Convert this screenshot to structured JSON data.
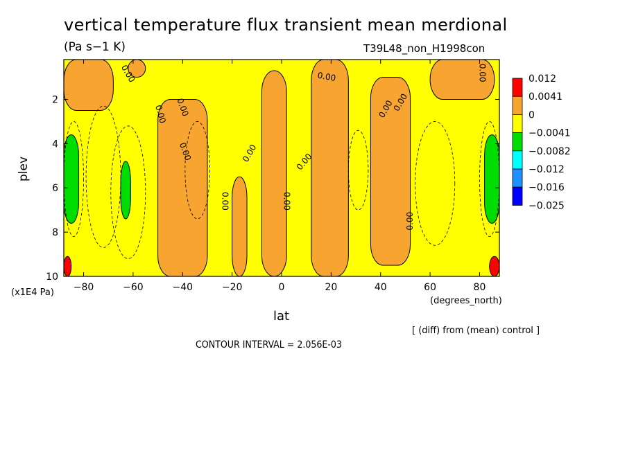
{
  "title": "vertical temperature flux transient mean merdional",
  "units": "(Pa s−1 K)",
  "run_label": "T39L48_non_H1998con",
  "note": "[ (diff) from (mean) control ]",
  "contour_interval": "CONTOUR INTERVAL = 2.056E-03",
  "chart_data": {
    "type": "heatmap",
    "xlabel": "lat",
    "xunit": "(degrees_north)",
    "ylabel": "plev",
    "yunit": "(x1E4 Pa)",
    "xlim": [
      -88,
      88
    ],
    "ylim": [
      0.2,
      10
    ],
    "x_ticks": [
      -80,
      -60,
      -40,
      -20,
      0,
      20,
      40,
      60,
      80
    ],
    "x_tick_labels": [
      "−80",
      "−60",
      "−40",
      "−20",
      "0",
      "20",
      "40",
      "60",
      "80"
    ],
    "y_ticks": [
      2,
      4,
      6,
      8,
      10
    ],
    "y_tick_labels": [
      "2",
      "4",
      "6",
      "8",
      "10"
    ],
    "legend": {
      "placement": "right",
      "labels": [
        "0.012",
        "0.0041",
        "0",
        "−0.0041",
        "−0.0082",
        "−0.012",
        "−0.016",
        "−0.025"
      ],
      "colors": [
        "#ff0000",
        "#f7a530",
        "#ffff00",
        "#00dd00",
        "#00ffff",
        "#1e90ff",
        "#0000ff"
      ]
    },
    "contour_labels": [
      "0.00",
      "0.00",
      "0.00",
      "0.00",
      "0.00",
      "0.00",
      "0.00",
      "0.00",
      "0.00",
      "0.00",
      "0.00",
      "0.00",
      "0.00"
    ],
    "regions": [
      {
        "level": "positive",
        "color": "#f7a530",
        "lat_range": [
          -88,
          -68
        ],
        "plev_range": [
          0.2,
          2.5
        ]
      },
      {
        "level": "positive",
        "color": "#f7a530",
        "lat_range": [
          -62,
          -55
        ],
        "plev_range": [
          0.2,
          1.0
        ]
      },
      {
        "level": "positive",
        "color": "#f7a530",
        "lat_range": [
          -50,
          -30
        ],
        "plev_range": [
          2.0,
          10
        ]
      },
      {
        "level": "positive",
        "color": "#f7a530",
        "lat_range": [
          -20,
          -14
        ],
        "plev_range": [
          5.5,
          10
        ]
      },
      {
        "level": "positive",
        "color": "#f7a530",
        "lat_range": [
          -8,
          2
        ],
        "plev_range": [
          0.7,
          10
        ]
      },
      {
        "level": "positive",
        "color": "#f7a530",
        "lat_range": [
          12,
          27
        ],
        "plev_range": [
          0.2,
          10
        ]
      },
      {
        "level": "positive",
        "color": "#f7a530",
        "lat_range": [
          36,
          52
        ],
        "plev_range": [
          1.0,
          9.5
        ]
      },
      {
        "level": "positive",
        "color": "#f7a530",
        "lat_range": [
          60,
          86
        ],
        "plev_range": [
          0.2,
          2.0
        ]
      },
      {
        "level": "negative",
        "color": "#00dd00",
        "lat_range": [
          -88,
          -82
        ],
        "plev_range": [
          3.6,
          7.6
        ]
      },
      {
        "level": "negative",
        "color": "#00dd00",
        "lat_range": [
          -65,
          -61
        ],
        "plev_range": [
          4.8,
          7.4
        ]
      },
      {
        "level": "negative",
        "color": "#00dd00",
        "lat_range": [
          82,
          88
        ],
        "plev_range": [
          3.6,
          7.6
        ]
      },
      {
        "level": "max",
        "color": "#ff0000",
        "lat_range": [
          -88,
          -85
        ],
        "plev_range": [
          9.1,
          10
        ]
      },
      {
        "level": "max",
        "color": "#ff0000",
        "lat_range": [
          84,
          88
        ],
        "plev_range": [
          9.1,
          10
        ]
      }
    ]
  }
}
